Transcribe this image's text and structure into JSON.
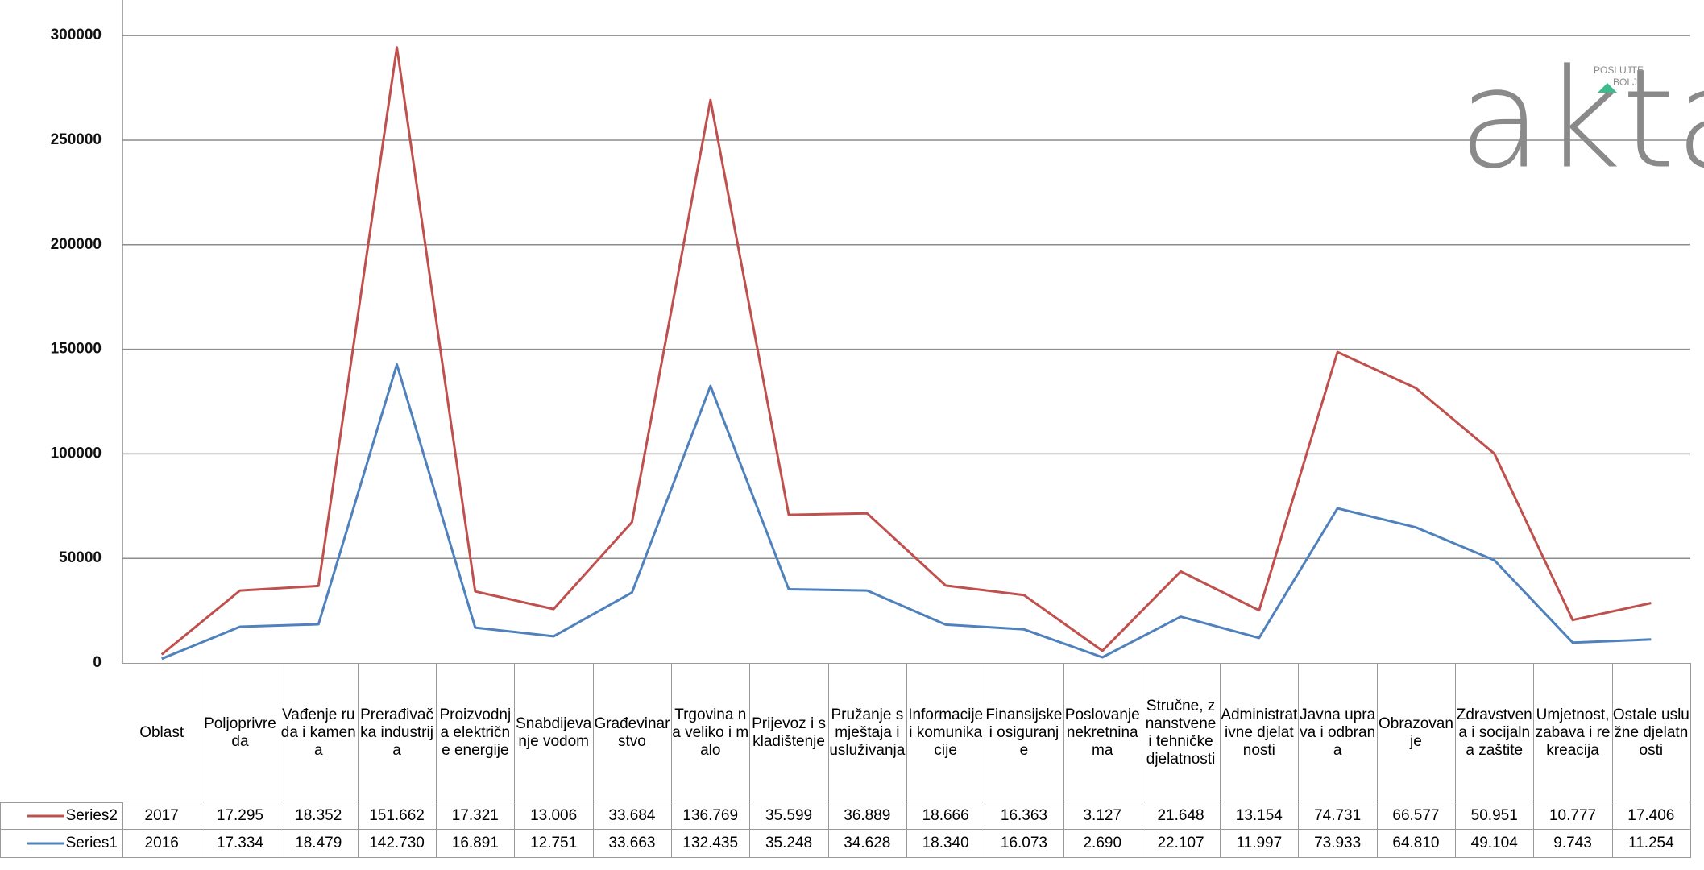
{
  "chart_data": {
    "type": "line",
    "stacked": true,
    "grid": true,
    "categories": [
      "Oblast",
      "Poljoprivreda",
      "Vađenje ruda i kamena",
      "Prerađivačka industrija",
      "Proizvodnja električne energije",
      "Snabdijevanje vodom",
      "Građevinarstvo",
      "Trgovina na veliko i malo",
      "Prijevoz i skladištenje",
      "Pružanje smještaja i usluživanja",
      "Informacije i komunikacije",
      "Finansijske i osiguranje",
      "Poslovanje nekretninama",
      "Stručne, znanstvene i tehničke djelatnosti",
      "Administrativne djelatnosti",
      "Javna uprava i odbrana",
      "Obrazovanje",
      "Zdravstvena i socijalna zaštite",
      "Umjetnost, zabava i rekreacija",
      "Ostale uslužne djelatnosti"
    ],
    "series": [
      {
        "name": "Series2",
        "color": "#c0504d",
        "values": [
          2017,
          17295,
          18352,
          151662,
          17321,
          13006,
          33684,
          136769,
          35599,
          36889,
          18666,
          16363,
          3127,
          21648,
          13154,
          74731,
          66577,
          50951,
          10777,
          17406
        ],
        "value_labels": [
          "2017",
          "17.295",
          "18.352",
          "151.662",
          "17.321",
          "13.006",
          "33.684",
          "136.769",
          "35.599",
          "36.889",
          "18.666",
          "16.363",
          "3.127",
          "21.648",
          "13.154",
          "74.731",
          "66.577",
          "50.951",
          "10.777",
          "17.406"
        ]
      },
      {
        "name": "Series1",
        "color": "#4f81bd",
        "values": [
          2016,
          17334,
          18479,
          142730,
          16891,
          12751,
          33663,
          132435,
          35248,
          34628,
          18340,
          16073,
          2690,
          22107,
          11997,
          73933,
          64810,
          49104,
          9743,
          11254
        ],
        "value_labels": [
          "2016",
          "17.334",
          "18.479",
          "142.730",
          "16.891",
          "12.751",
          "33.663",
          "132.435",
          "35.248",
          "34.628",
          "18.340",
          "16.073",
          "2.690",
          "22.107",
          "11.997",
          "73.933",
          "64.810",
          "49.104",
          "9.743",
          "11.254"
        ]
      }
    ],
    "ylim": [
      0,
      317000
    ],
    "yticks": [
      0,
      50000,
      100000,
      150000,
      200000,
      250000,
      300000
    ]
  },
  "logo": {
    "name": "akta",
    "tagline_1": "POSLUJTE",
    "tagline_2": "BOLJE"
  }
}
